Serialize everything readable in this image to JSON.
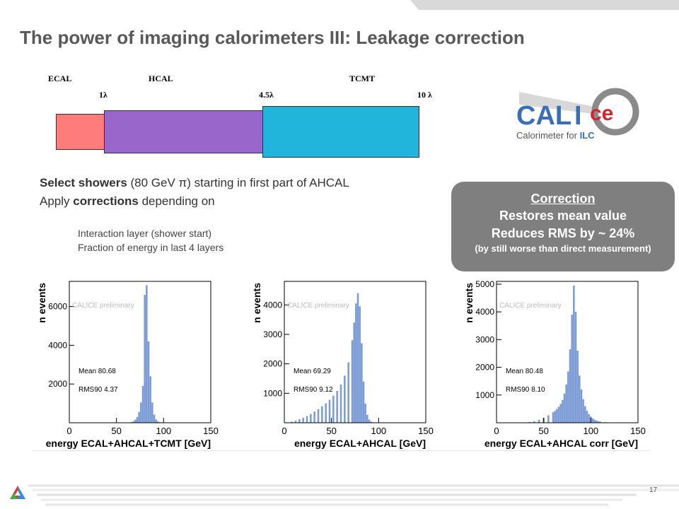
{
  "title": "The power of imaging calorimeters III: Leakage correction",
  "detector": {
    "labels": [
      "ECAL",
      "HCAL",
      "TCMT"
    ],
    "lambda_marks": [
      "1λ",
      "4.5λ",
      "10 λ"
    ],
    "colors": {
      "ecal": "#ff7c7c",
      "hcal": "#9966cc",
      "tcmt": "#22b5dc"
    }
  },
  "logo": {
    "brand_cal": "CAL",
    "brand_i": "I",
    "brand_ce": "ce",
    "caption_prefix": "Calorimeter for ",
    "caption_ilc": "ILC"
  },
  "bullets": {
    "line1_bold": "Select showers",
    "line1_rest": " (80 GeV π) starting in first part of AHCAL",
    "line2_pre": "Apply ",
    "line2_bold": "corrections",
    "line2_rest": " depending on",
    "sub": [
      "Interaction layer (shower start)",
      "Fraction of energy in last 4 layers"
    ]
  },
  "correction_box": {
    "heading": "Correction",
    "line1": "Restores mean value",
    "line2": "Reduces RMS by ~ 24%",
    "line3": "(by still worse than direct measurement)"
  },
  "chart_data": [
    {
      "type": "bar",
      "xlabel": "energy ECAL+AHCAL+TCMT [GeV]",
      "ylabel": "n events",
      "annotation": "CALICE preliminary",
      "stats": [
        "Mean 80.68",
        "RMS90 4.37"
      ],
      "xlim": [
        0,
        150
      ],
      "ylim": [
        0,
        7300
      ],
      "xticks": [
        0,
        50,
        100,
        150
      ],
      "yticks": [
        2000,
        4000,
        6000
      ],
      "bar_color": "#7b9bd6",
      "x": [
        62,
        64,
        66,
        68,
        70,
        72,
        74,
        76,
        78,
        80,
        82,
        84,
        86,
        88,
        90,
        92,
        94,
        96,
        98,
        100
      ],
      "values": [
        5,
        15,
        35,
        80,
        160,
        300,
        560,
        1050,
        1900,
        6600,
        7100,
        4200,
        2400,
        1050,
        420,
        170,
        70,
        30,
        10,
        4
      ]
    },
    {
      "type": "bar",
      "xlabel": "energy ECAL+AHCAL [GeV]",
      "ylabel": "n events",
      "annotation": "CALICE preliminary",
      "stats": [
        "Mean 69.29",
        "RMS90 9.12"
      ],
      "xlim": [
        0,
        150
      ],
      "ylim": [
        0,
        4800
      ],
      "xticks": [
        0,
        50,
        100,
        150
      ],
      "yticks": [
        1000,
        2000,
        3000,
        4000
      ],
      "bar_color": "#7b9bd6",
      "x": [
        4,
        8,
        12,
        16,
        20,
        24,
        28,
        32,
        36,
        40,
        44,
        48,
        52,
        56,
        60,
        64,
        68,
        72,
        74,
        76,
        78,
        80,
        82,
        84,
        86,
        88,
        90,
        92,
        94,
        96
      ],
      "values": [
        10,
        40,
        70,
        120,
        170,
        230,
        300,
        380,
        460,
        560,
        660,
        780,
        920,
        1080,
        1300,
        1600,
        2050,
        2800,
        3400,
        4050,
        4400,
        3950,
        2700,
        1400,
        650,
        270,
        110,
        40,
        15,
        5
      ]
    },
    {
      "type": "bar",
      "xlabel": "energy ECAL+AHCAL corr [GeV]",
      "ylabel": "n events",
      "annotation": "CALICE preliminary",
      "stats": [
        "Mean 80.48",
        "RMS90 8.10"
      ],
      "xlim": [
        0,
        150
      ],
      "ylim": [
        0,
        5100
      ],
      "xticks": [
        0,
        50,
        100,
        150
      ],
      "yticks": [
        1000,
        2000,
        3000,
        4000,
        5000
      ],
      "bar_color": "#7b9bd6",
      "x": [
        30,
        35,
        40,
        45,
        50,
        55,
        60,
        62,
        64,
        66,
        68,
        70,
        72,
        74,
        76,
        78,
        80,
        82,
        84,
        86,
        88,
        90,
        92,
        94,
        96,
        98,
        100,
        102,
        104,
        106,
        108,
        110,
        115,
        120
      ],
      "values": [
        15,
        30,
        60,
        110,
        180,
        270,
        380,
        430,
        500,
        580,
        680,
        820,
        1050,
        1380,
        1850,
        2650,
        3900,
        4950,
        4000,
        2600,
        1700,
        1200,
        850,
        600,
        430,
        310,
        220,
        160,
        110,
        80,
        55,
        40,
        20,
        10
      ]
    }
  ],
  "page_number": "17"
}
